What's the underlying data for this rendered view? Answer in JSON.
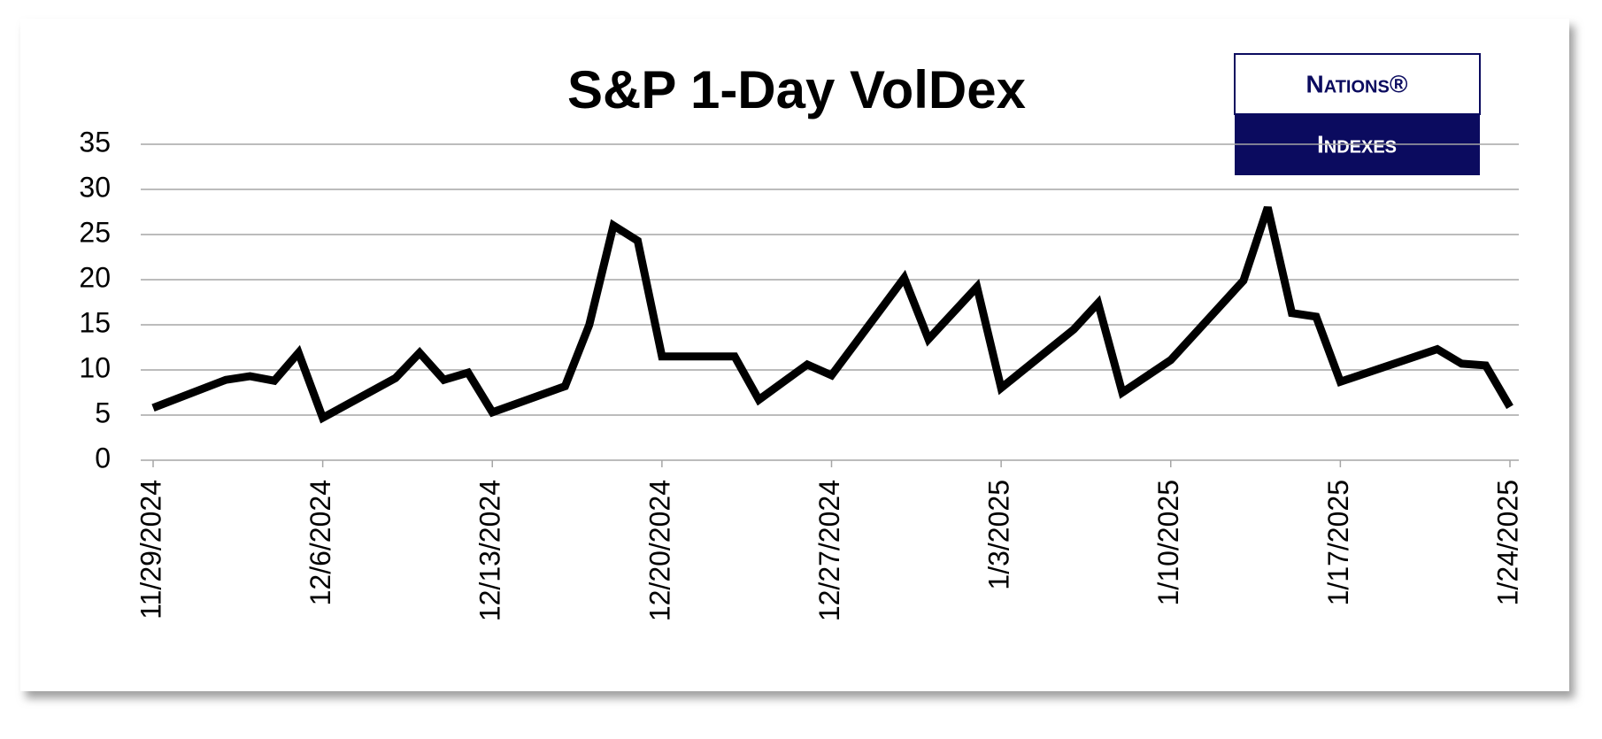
{
  "chart_data": {
    "type": "line",
    "title": "S&P 1-Day VolDex",
    "logo": {
      "top": "Nations®",
      "bottom": "Indexes"
    },
    "x": [
      "11/29/2024",
      "12/2/2024",
      "12/3/2024",
      "12/4/2024",
      "12/5/2024",
      "12/6/2024",
      "12/9/2024",
      "12/10/2024",
      "12/11/2024",
      "12/12/2024",
      "12/13/2024",
      "12/16/2024",
      "12/17/2024",
      "12/18/2024",
      "12/19/2024",
      "12/20/2024",
      "12/23/2024",
      "12/24/2024",
      "12/26/2024",
      "12/27/2024",
      "12/30/2024",
      "12/31/2024",
      "1/2/2025",
      "1/3/2025",
      "1/6/2025",
      "1/7/2025",
      "1/8/2025",
      "1/10/2025",
      "1/13/2025",
      "1/14/2025",
      "1/15/2025",
      "1/16/2025",
      "1/17/2025",
      "1/21/2025",
      "1/22/2025",
      "1/23/2025",
      "1/24/2025"
    ],
    "values": [
      5.8,
      8.9,
      9.3,
      8.8,
      11.9,
      4.7,
      9.1,
      11.9,
      8.9,
      9.7,
      5.3,
      8.2,
      15.0,
      26.0,
      24.3,
      11.5,
      11.5,
      6.7,
      10.6,
      9.4,
      20.2,
      13.4,
      19.2,
      8.0,
      14.5,
      17.4,
      7.5,
      11.1,
      19.9,
      28.0,
      16.3,
      15.9,
      8.7,
      12.3,
      10.7,
      10.5,
      5.9
    ],
    "color": "#000000",
    "xlim": [
      "11/29/2024",
      "1/24/2025"
    ],
    "xticks": [
      "11/29/2024",
      "12/6/2024",
      "12/13/2024",
      "12/20/2024",
      "12/27/2024",
      "1/3/2025",
      "1/10/2025",
      "1/17/2025",
      "1/24/2025"
    ],
    "ylim": [
      0,
      35
    ],
    "yticks": [
      0,
      5,
      10,
      15,
      20,
      25,
      30,
      35
    ],
    "grid": true
  }
}
